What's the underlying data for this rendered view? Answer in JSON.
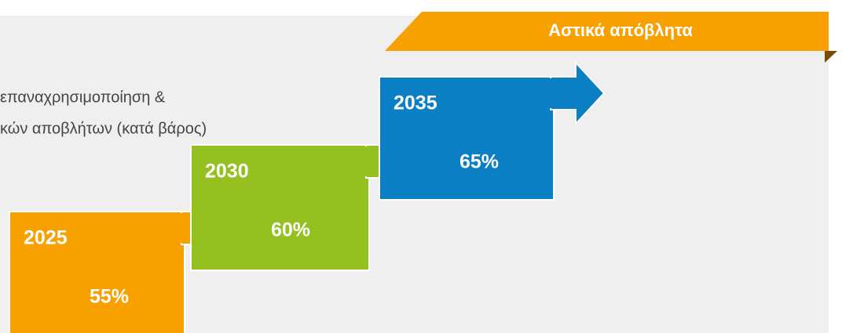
{
  "banner": "Αστικά απόβλητα",
  "description": [
    "επαναχρησιμοποίηση &",
    "κών αποβλήτων (κατά βάρος)"
  ],
  "steps": [
    {
      "year": "2025",
      "value": "55%",
      "color": "#f7a000"
    },
    {
      "year": "2030",
      "value": "60%",
      "color": "#94c11f"
    },
    {
      "year": "2035",
      "value": "65%",
      "color": "#0a7fc3"
    }
  ]
}
